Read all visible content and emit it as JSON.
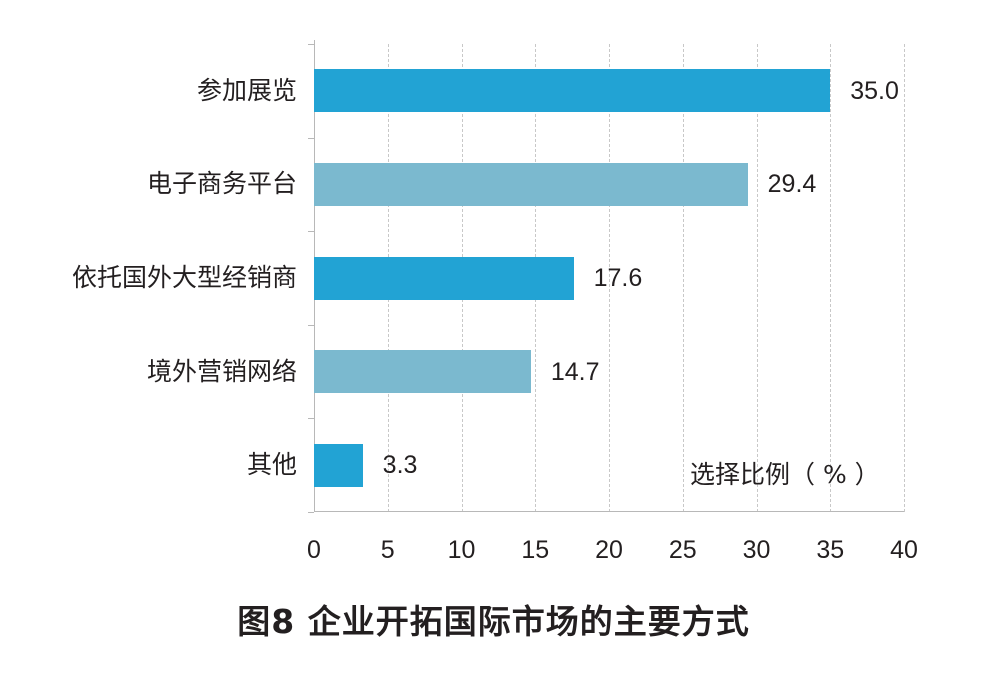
{
  "chart_data": {
    "type": "bar",
    "orientation": "horizontal",
    "title": "图8  企业开拓国际市场的主要方式",
    "xlabel": "选择比例（%）",
    "ylabel": "",
    "categories": [
      "参加展览",
      "电子商务平台",
      "依托国外大型经销商",
      "境外营销网络",
      "其他"
    ],
    "values": [
      35.0,
      29.4,
      17.6,
      14.7,
      3.3
    ],
    "value_labels": [
      "35.0",
      "29.4",
      "17.6",
      "14.7",
      "3.3"
    ],
    "bar_colors": [
      "#22a3d4",
      "#7bb9cf",
      "#22a3d4",
      "#7bb9cf",
      "#22a3d4"
    ],
    "xlim": [
      0,
      40
    ],
    "xticks": [
      "0",
      "5",
      "10",
      "15",
      "20",
      "25",
      "30",
      "35",
      "40"
    ],
    "grid": "vertical dashed",
    "legend": "none"
  },
  "title": "图8  企业开拓国际市场的主要方式",
  "unit_label": "选择比例（ % ）"
}
